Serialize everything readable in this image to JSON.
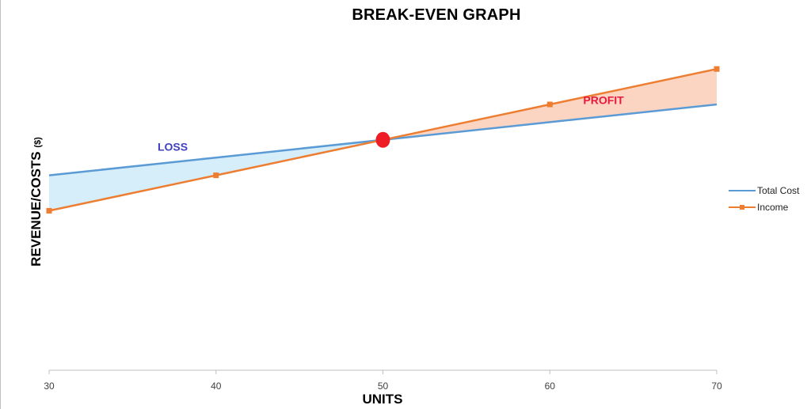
{
  "chart_data": {
    "type": "line",
    "title": "BREAK-EVEN GRAPH",
    "xlabel": "UNITS",
    "ylabel": "REVENUE/COSTS",
    "ylabel_unit": "($)",
    "x": [
      30,
      40,
      50,
      60,
      70
    ],
    "xlim": [
      30,
      70
    ],
    "ylim": [
      0,
      10000
    ],
    "series": [
      {
        "name": "Total Cost",
        "color": "#5b9bd5",
        "markers": false,
        "values": [
          5500,
          6000,
          6500,
          7000,
          7500
        ]
      },
      {
        "name": "Income",
        "color": "#ed7d31",
        "markers": true,
        "values": [
          4500,
          5500,
          6500,
          7500,
          8500
        ]
      }
    ],
    "break_even": {
      "x": 50,
      "y": 6500,
      "color": "#ee1c25"
    },
    "regions": [
      {
        "label": "LOSS",
        "label_color": "#4040c0",
        "fill": "#d6eefa",
        "label_at": [
          36.5,
          6190
        ]
      },
      {
        "label": "PROFIT",
        "label_color": "#e8193c",
        "fill": "#fbd5c2",
        "label_at": [
          62,
          7510
        ]
      }
    ],
    "grid": false,
    "legend_position": "right"
  }
}
